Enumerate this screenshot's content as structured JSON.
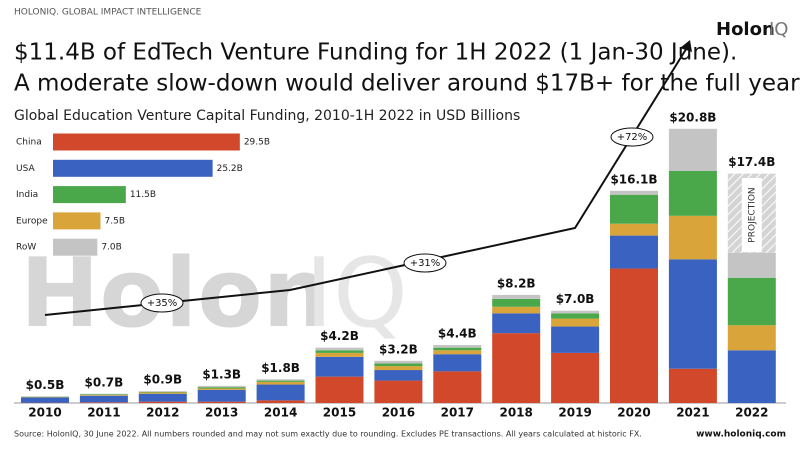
{
  "header": "HOLONIQ. GLOBAL IMPACT INTELLIGENCE",
  "logo": {
    "bold": "Holon",
    "light": "IQ"
  },
  "title_lines": [
    "$11.4B of EdTech Venture Funding for 1H 2022 (1 Jan-30 June).",
    "A moderate slow-down would deliver around $17B+ for the full year."
  ],
  "watermark": {
    "bold": "Holon",
    "light": "IQ"
  },
  "source": "Source: HolonIQ, 30 June 2022. All numbers rounded and may not sum exactly due to rounding. Excludes PE transactions. All years calculated at historic FX.",
  "website": "www.holoniq.com",
  "chart_data": [
    {
      "type": "stacked_bar",
      "categories": [
        "2010",
        "2011",
        "2012",
        "2013",
        "2014",
        "2015",
        "2016",
        "2017",
        "2018",
        "2019",
        "2020",
        "2021",
        "2022"
      ],
      "ylim": [
        0,
        22
      ],
      "series": [
        {
          "color": "#d2482a",
          "values": [
            0.02,
            0.05,
            0.1,
            0.1,
            0.2,
            2.0,
            1.7,
            2.4,
            5.3,
            3.8,
            10.2,
            2.6,
            0
          ]
        },
        {
          "color": "#3a62c0",
          "values": [
            0.4,
            0.5,
            0.6,
            0.9,
            1.2,
            1.5,
            0.8,
            1.3,
            1.5,
            2.0,
            2.5,
            8.3,
            4.0
          ]
        },
        {
          "color": "#d9a43a",
          "values": [
            0.03,
            0.05,
            0.1,
            0.1,
            0.2,
            0.3,
            0.3,
            0.3,
            0.5,
            0.6,
            0.9,
            3.3,
            1.9
          ]
        },
        {
          "color": "#4aa84a",
          "values": [
            0.03,
            0.05,
            0.05,
            0.1,
            0.1,
            0.2,
            0.2,
            0.2,
            0.6,
            0.4,
            2.2,
            3.4,
            3.6
          ]
        },
        {
          "color": "#c4c4c4",
          "values": [
            0.02,
            0.05,
            0.05,
            0.1,
            0.1,
            0.2,
            0.2,
            0.2,
            0.3,
            0.2,
            0.3,
            3.2,
            1.9
          ]
        },
        {
          "color": "#d4d4d4",
          "hatched": true,
          "values": [
            null,
            null,
            null,
            null,
            null,
            null,
            null,
            null,
            null,
            null,
            null,
            null,
            6.0
          ]
        }
      ],
      "totals": {
        "values": [
          0.5,
          0.7,
          0.9,
          1.3,
          1.8,
          4.2,
          3.2,
          4.4,
          8.2,
          7.0,
          16.1,
          20.8,
          17.4
        ],
        "value_labels": [
          "$0.5B",
          "$0.7B",
          "$0.9B",
          "$1.3B",
          "$1.8B",
          "$4.2B",
          "$3.2B",
          "$4.4B",
          "$8.2B",
          "$7.0B",
          "$16.1B",
          "$20.8B",
          "$17.4B"
        ]
      },
      "annotations": [
        "+35%",
        "+31%",
        "+72%",
        "PROJECTION"
      ]
    },
    {
      "type": "hbar",
      "title": "Global Education Venture Capital Funding, 2010-1H 2022 in USD Billions",
      "categories": [
        "China",
        "USA",
        "India",
        "Europe",
        "RoW"
      ],
      "values": [
        29.5,
        25.2,
        11.5,
        7.5,
        7.0
      ],
      "value_labels": [
        "29.5B",
        "25.2B",
        "11.5B",
        "7.5B",
        "7.0B"
      ],
      "colors": [
        "#d2482a",
        "#3a62c0",
        "#4aa84a",
        "#d9a43a",
        "#c4c4c4"
      ],
      "xlim": [
        0,
        30
      ]
    }
  ]
}
